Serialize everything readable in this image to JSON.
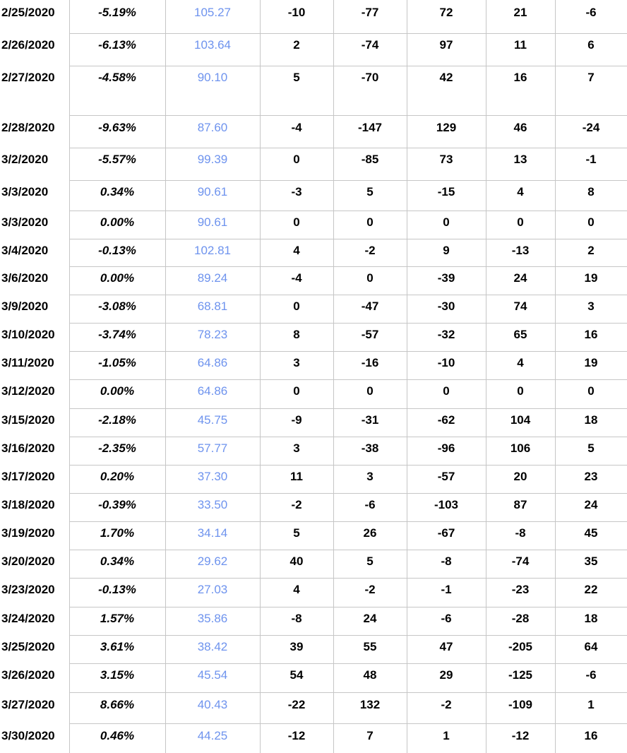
{
  "colors": {
    "grid": "#c6c6c6",
    "price_text": "#6e93ee",
    "text": "#000000"
  },
  "rows": [
    [
      "2/25/2020",
      "-5.19%",
      "105.27",
      "-10",
      "-77",
      "72",
      "21",
      "-6"
    ],
    [
      "2/26/2020",
      "-6.13%",
      "103.64",
      "2",
      "-74",
      "97",
      "11",
      "6"
    ],
    [
      "2/27/2020",
      "-4.58%",
      "90.10",
      "5",
      "-70",
      "42",
      "16",
      "7"
    ],
    [
      "2/28/2020",
      "-9.63%",
      "87.60",
      "-4",
      "-147",
      "129",
      "46",
      "-24"
    ],
    [
      "3/2/2020",
      "-5.57%",
      "99.39",
      "0",
      "-85",
      "73",
      "13",
      "-1"
    ],
    [
      "3/3/2020",
      "0.34%",
      "90.61",
      "-3",
      "5",
      "-15",
      "4",
      "8"
    ],
    [
      "3/3/2020",
      "0.00%",
      "90.61",
      "0",
      "0",
      "0",
      "0",
      "0"
    ],
    [
      "3/4/2020",
      "-0.13%",
      "102.81",
      "4",
      "-2",
      "9",
      "-13",
      "2"
    ],
    [
      "3/6/2020",
      "0.00%",
      "89.24",
      "-4",
      "0",
      "-39",
      "24",
      "19"
    ],
    [
      "3/9/2020",
      "-3.08%",
      "68.81",
      "0",
      "-47",
      "-30",
      "74",
      "3"
    ],
    [
      "3/10/2020",
      "-3.74%",
      "78.23",
      "8",
      "-57",
      "-32",
      "65",
      "16"
    ],
    [
      "3/11/2020",
      "-1.05%",
      "64.86",
      "3",
      "-16",
      "-10",
      "4",
      "19"
    ],
    [
      "3/12/2020",
      "0.00%",
      "64.86",
      "0",
      "0",
      "0",
      "0",
      "0"
    ],
    [
      "3/15/2020",
      "-2.18%",
      "45.75",
      "-9",
      "-31",
      "-62",
      "104",
      "18"
    ],
    [
      "3/16/2020",
      "-2.35%",
      "57.77",
      "3",
      "-38",
      "-96",
      "106",
      "5"
    ],
    [
      "3/17/2020",
      "0.20%",
      "37.30",
      "11",
      "3",
      "-57",
      "20",
      "23"
    ],
    [
      "3/18/2020",
      "-0.39%",
      "33.50",
      "-2",
      "-6",
      "-103",
      "87",
      "24"
    ],
    [
      "3/19/2020",
      "1.70%",
      "34.14",
      "5",
      "26",
      "-67",
      "-8",
      "45"
    ],
    [
      "3/20/2020",
      "0.34%",
      "29.62",
      "40",
      "5",
      "-8",
      "-74",
      "35"
    ],
    [
      "3/23/2020",
      "-0.13%",
      "27.03",
      "4",
      "-2",
      "-1",
      "-23",
      "22"
    ],
    [
      "3/24/2020",
      "1.57%",
      "35.86",
      "-8",
      "24",
      "-6",
      "-28",
      "18"
    ],
    [
      "3/25/2020",
      "3.61%",
      "38.42",
      "39",
      "55",
      "47",
      "-205",
      "64"
    ],
    [
      "3/26/2020",
      "3.15%",
      "45.54",
      "54",
      "48",
      "29",
      "-125",
      "-6"
    ],
    [
      "3/27/2020",
      "8.66%",
      "40.43",
      "-22",
      "132",
      "-2",
      "-109",
      "1"
    ],
    [
      "3/30/2020",
      "0.46%",
      "44.25",
      "-12",
      "7",
      "1",
      "-12",
      "16"
    ]
  ]
}
